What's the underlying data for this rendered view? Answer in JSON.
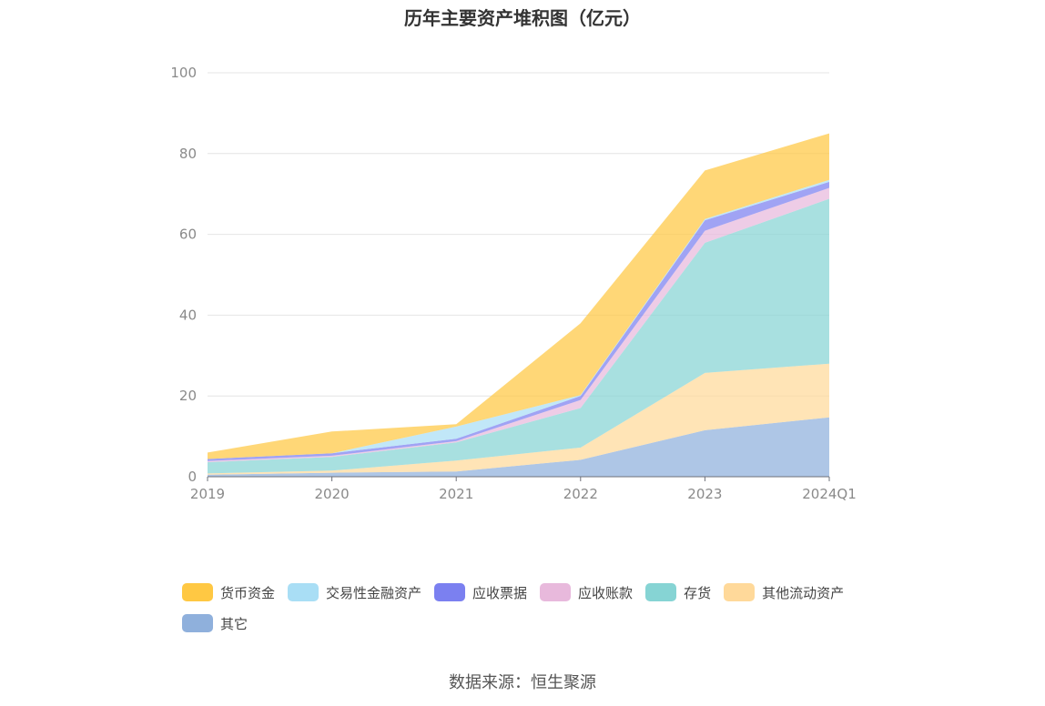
{
  "chart_data": {
    "type": "area",
    "stacked": true,
    "title": "历年主要资产堆积图（亿元）",
    "categories": [
      "2019",
      "2020",
      "2021",
      "2022",
      "2023",
      "2024Q1"
    ],
    "ylim": [
      0,
      100
    ],
    "yticks": [
      0,
      20,
      40,
      60,
      80,
      100
    ],
    "grid": true,
    "legend_position": "bottom",
    "series": [
      {
        "name": "其它",
        "color": "#8fb0dc",
        "values": [
          0.5,
          1.0,
          1.3,
          4.2,
          11.5,
          14.7
        ]
      },
      {
        "name": "其他流动资产",
        "color": "#ffd99a",
        "values": [
          0.3,
          0.5,
          2.7,
          3.0,
          14.2,
          13.3
        ]
      },
      {
        "name": "存货",
        "color": "#86d4d4",
        "values": [
          2.8,
          3.4,
          4.5,
          9.8,
          32.2,
          40.8
        ]
      },
      {
        "name": "应收账款",
        "color": "#e8b9dc",
        "values": [
          0.3,
          0.3,
          0.3,
          2.0,
          3.0,
          2.7
        ]
      },
      {
        "name": "应收票据",
        "color": "#7b80f0",
        "values": [
          0.5,
          0.6,
          0.6,
          1.0,
          2.6,
          1.5
        ]
      },
      {
        "name": "交易性金融资产",
        "color": "#a9def5",
        "values": [
          0.0,
          0.0,
          3.0,
          0.2,
          0.3,
          0.5
        ]
      },
      {
        "name": "货币资金",
        "color": "#ffc843",
        "values": [
          1.6,
          5.4,
          0.6,
          17.8,
          12.0,
          11.5
        ]
      }
    ],
    "legend_order": [
      "货币资金",
      "交易性金融资产",
      "应收票据",
      "应收账款",
      "存货",
      "其他流动资产",
      "其它"
    ]
  },
  "source": "数据来源：恒生聚源"
}
